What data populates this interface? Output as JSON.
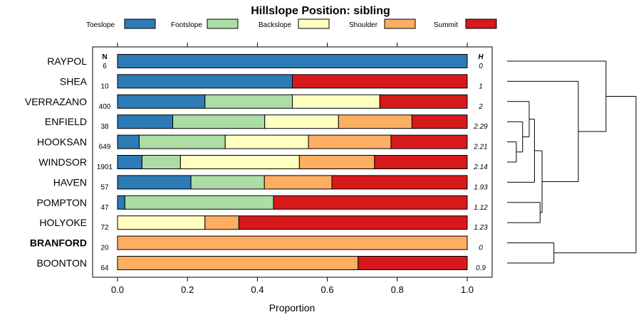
{
  "chart_data": {
    "type": "bar",
    "orientation": "horizontal",
    "stacked": true,
    "title": "Hillslope Position: sibling",
    "xlabel": "Proportion",
    "xlim": [
      0,
      1
    ],
    "x_ticks": [
      "0.0",
      "0.2",
      "0.4",
      "0.6",
      "0.8",
      "1.0"
    ],
    "x_tick_values": [
      0,
      0.2,
      0.4,
      0.6,
      0.8,
      1.0
    ],
    "n_header": "N",
    "h_header": "H",
    "legend_position": "top",
    "series": [
      {
        "name": "Toeslope",
        "color": "#2c7bb6"
      },
      {
        "name": "Footslope",
        "color": "#abdda4"
      },
      {
        "name": "Backslope",
        "color": "#ffffbf"
      },
      {
        "name": "Shoulder",
        "color": "#fdae61"
      },
      {
        "name": "Summit",
        "color": "#d7191c"
      }
    ],
    "rows": [
      {
        "label": "RAYPOL",
        "bold": false,
        "n": "6",
        "h": "0",
        "values": [
          1.0,
          0,
          0,
          0,
          0
        ]
      },
      {
        "label": "SHEA",
        "bold": false,
        "n": "10",
        "h": "1",
        "values": [
          0.5,
          0,
          0,
          0,
          0.5
        ]
      },
      {
        "label": "VERRAZANO",
        "bold": false,
        "n": "400",
        "h": "2",
        "values": [
          0.25,
          0.25,
          0.25,
          0,
          0.25
        ]
      },
      {
        "label": "ENFIELD",
        "bold": false,
        "n": "38",
        "h": "2.29",
        "values": [
          0.158,
          0.263,
          0.211,
          0.21,
          0.158
        ]
      },
      {
        "label": "HOOKSAN",
        "bold": false,
        "n": "649",
        "h": "2.21",
        "values": [
          0.062,
          0.246,
          0.238,
          0.236,
          0.218
        ]
      },
      {
        "label": "WINDSOR",
        "bold": false,
        "n": "1901",
        "h": "2.14",
        "values": [
          0.07,
          0.11,
          0.34,
          0.215,
          0.265
        ]
      },
      {
        "label": "HAVEN",
        "bold": false,
        "n": "57",
        "h": "1.93",
        "values": [
          0.21,
          0.21,
          0,
          0.193,
          0.387
        ]
      },
      {
        "label": "POMPTON",
        "bold": false,
        "n": "47",
        "h": "1.12",
        "values": [
          0.021,
          0.425,
          0,
          0,
          0.554
        ]
      },
      {
        "label": "HOLYOKE",
        "bold": false,
        "n": "72",
        "h": "1.23",
        "values": [
          0,
          0,
          0.25,
          0.097,
          0.653
        ]
      },
      {
        "label": "BRANFORD",
        "bold": true,
        "n": "20",
        "h": "0",
        "values": [
          0,
          0,
          0,
          1.0,
          0
        ]
      },
      {
        "label": "BOONTON",
        "bold": false,
        "n": "64",
        "h": "0.9",
        "values": [
          0,
          0,
          0,
          0.688,
          0.312
        ]
      }
    ],
    "dendrogram": {
      "merges": [
        {
          "a": "HOOKSAN",
          "b": "WINDSOR",
          "height": 0.28
        },
        {
          "a": "ENFIELD",
          "b": "m0",
          "height": 0.47
        },
        {
          "a": "VERRAZANO",
          "b": "m1",
          "height": 0.67
        },
        {
          "a": "HAVEN",
          "b": "m2",
          "height": 0.83
        },
        {
          "a": "POMPTON",
          "b": "HOLYOKE",
          "height": 1.0
        },
        {
          "a": "m3",
          "b": "m4",
          "height": 1.06
        },
        {
          "a": "SHEA",
          "b": "m5",
          "height": 2.16
        },
        {
          "a": "BRANFORD",
          "b": "BOONTON",
          "height": 1.42
        },
        {
          "a": "RAYPOL",
          "b": "m6",
          "height": 3.0
        },
        {
          "a": "m8",
          "b": "m7",
          "height": 3.91
        }
      ]
    }
  }
}
